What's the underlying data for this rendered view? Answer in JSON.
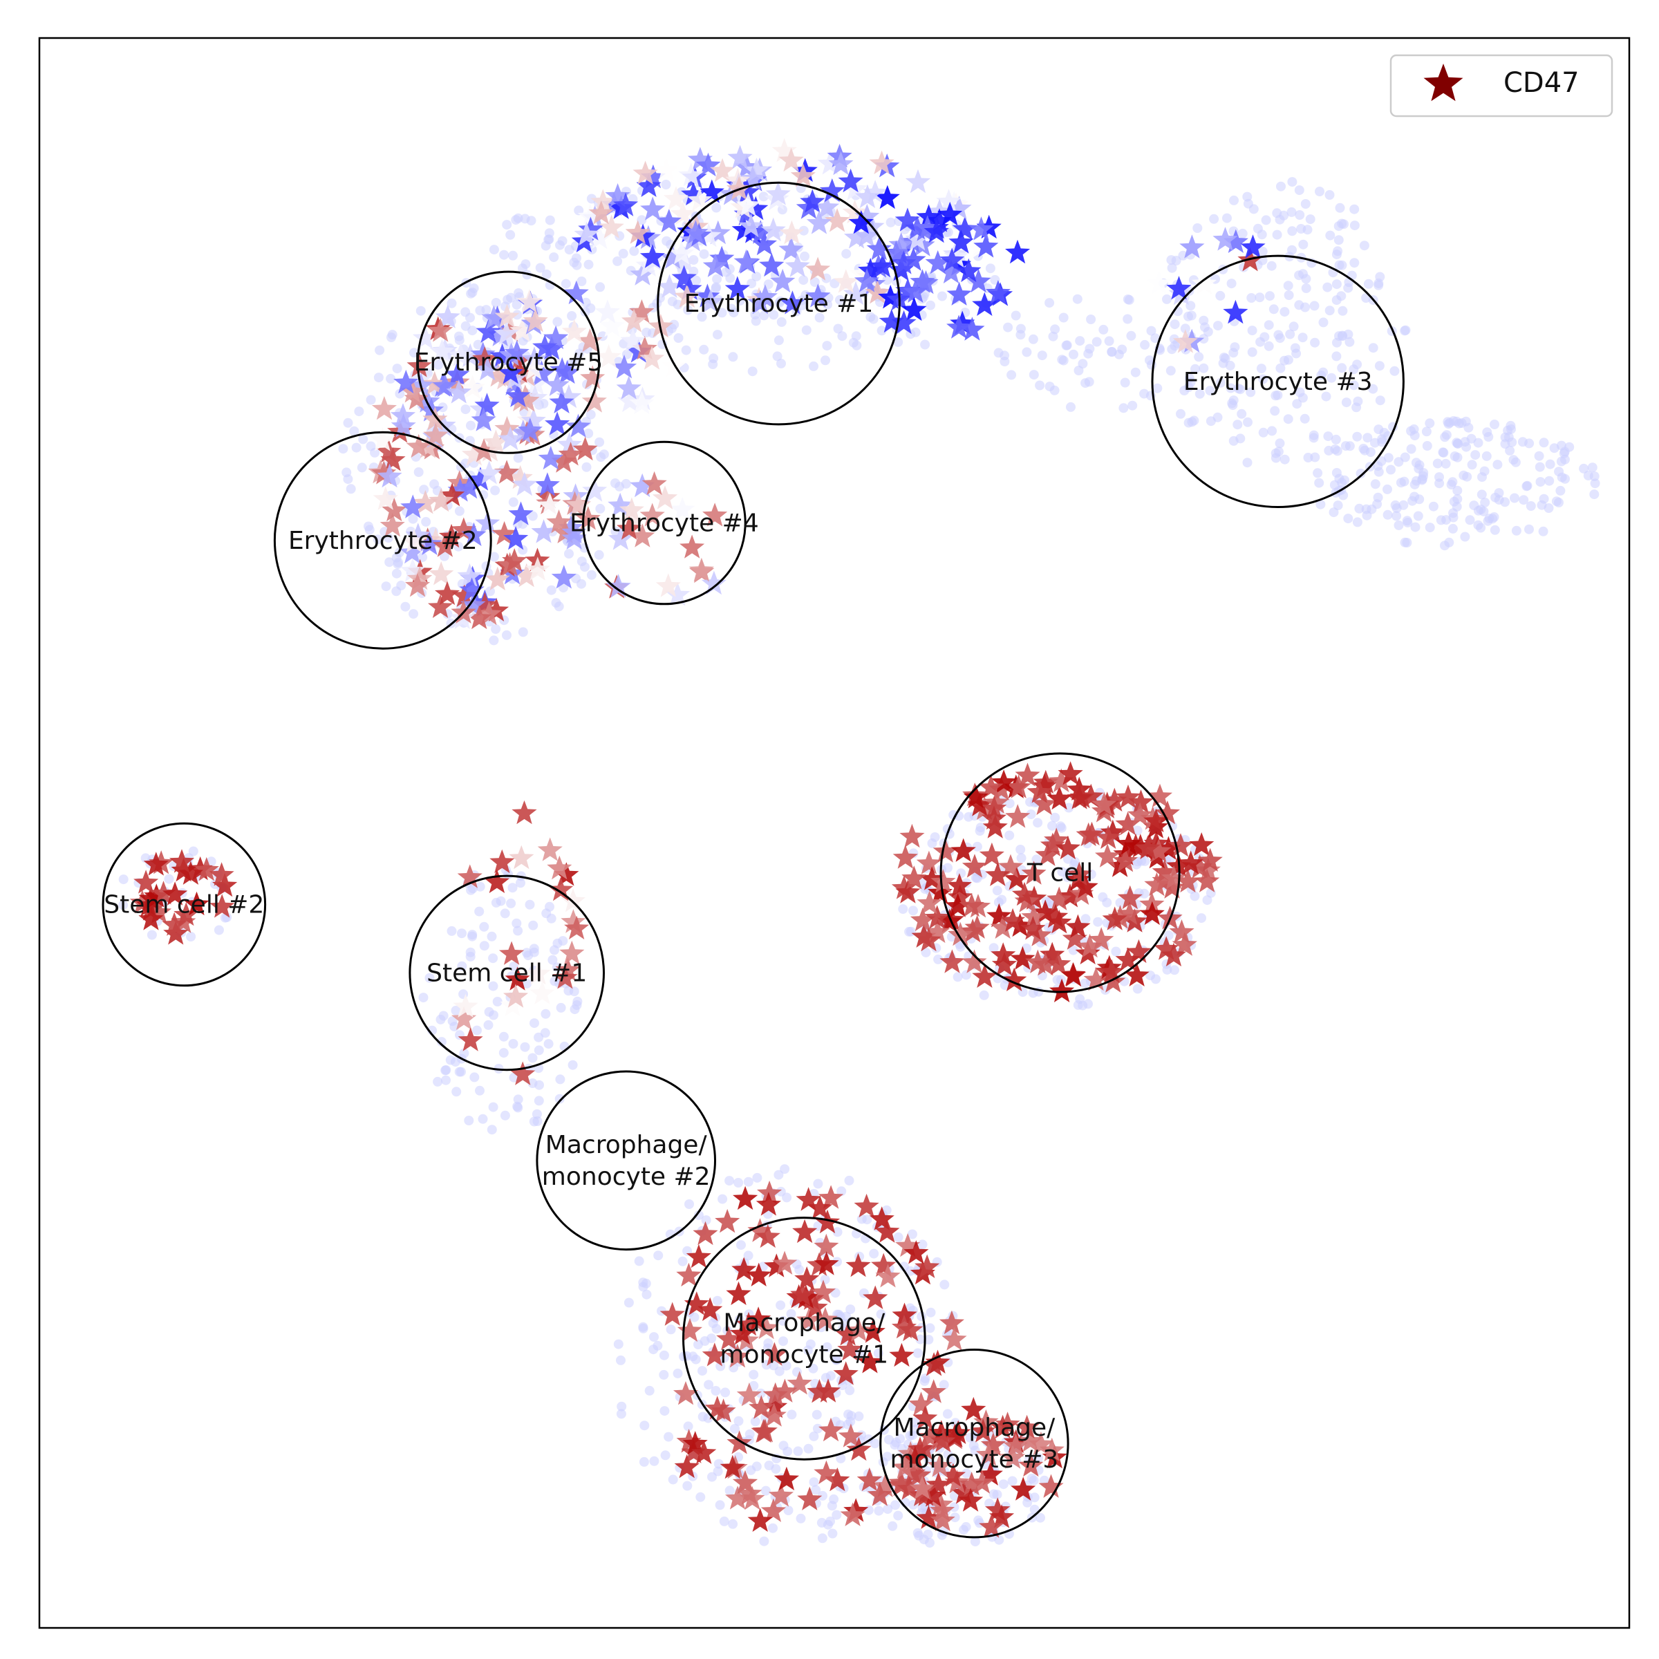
{
  "chart_data": {
    "type": "scatter",
    "title": "",
    "xlabel": "",
    "ylabel": "",
    "xlim": [
      0,
      100
    ],
    "ylim": [
      0,
      100
    ],
    "grid": false,
    "ticks": false,
    "legend": {
      "placement": "top-right",
      "entries": [
        {
          "label": "CD47",
          "marker": "star",
          "color": "#800000"
        }
      ]
    },
    "colormap": {
      "low": "#0000ff",
      "mid": "#ffffff",
      "high": "#b00000",
      "background_points": "#ccd0ff"
    },
    "background_regions": [
      {
        "cx": 44,
        "cy": 85,
        "rx": 18,
        "ry": 6,
        "n": 260
      },
      {
        "cx": 28,
        "cy": 73,
        "rx": 9,
        "ry": 11,
        "n": 200
      },
      {
        "cx": 66,
        "cy": 80,
        "rx": 6,
        "ry": 4,
        "n": 60
      },
      {
        "cx": 78,
        "cy": 82,
        "rx": 8,
        "ry": 9,
        "n": 220
      },
      {
        "cx": 89,
        "cy": 72,
        "rx": 9,
        "ry": 4,
        "n": 200
      },
      {
        "cx": 64,
        "cy": 46,
        "rx": 10,
        "ry": 7,
        "n": 220
      },
      {
        "cx": 29,
        "cy": 39,
        "rx": 5,
        "ry": 9,
        "n": 120
      },
      {
        "cx": 9,
        "cy": 46,
        "rx": 4,
        "ry": 3,
        "n": 30
      },
      {
        "cx": 47,
        "cy": 17,
        "rx": 11,
        "ry": 12,
        "n": 300
      },
      {
        "cx": 58,
        "cy": 9,
        "rx": 6,
        "ry": 4,
        "n": 120
      }
    ],
    "expression_regions": [
      {
        "cx": 47,
        "cy": 88,
        "rx": 13,
        "ry": 5,
        "n": 150,
        "vmin": -1.0,
        "vmax": 0.3
      },
      {
        "cx": 28,
        "cy": 73,
        "rx": 7,
        "ry": 10,
        "n": 150,
        "vmin": -0.7,
        "vmax": 0.8
      },
      {
        "cx": 34,
        "cy": 80,
        "rx": 6,
        "ry": 4,
        "n": 45,
        "vmin": -0.8,
        "vmax": 0.5
      },
      {
        "cx": 38,
        "cy": 68,
        "rx": 6,
        "ry": 4,
        "n": 25,
        "vmin": -0.5,
        "vmax": 0.7
      },
      {
        "cx": 57,
        "cy": 85,
        "rx": 5,
        "ry": 4,
        "n": 35,
        "vmin": -1.0,
        "vmax": -0.4
      },
      {
        "cx": 74,
        "cy": 84,
        "rx": 4,
        "ry": 4,
        "n": 12,
        "vmin": -0.9,
        "vmax": 0.8
      },
      {
        "cx": 64,
        "cy": 47,
        "rx": 10,
        "ry": 7,
        "n": 170,
        "vmin": 0.55,
        "vmax": 1.0
      },
      {
        "cx": 9,
        "cy": 46,
        "rx": 3,
        "ry": 2.5,
        "n": 25,
        "vmin": 0.6,
        "vmax": 1.0
      },
      {
        "cx": 30,
        "cy": 43,
        "rx": 4,
        "ry": 9,
        "n": 25,
        "vmin": 0.0,
        "vmax": 0.95
      },
      {
        "cx": 48,
        "cy": 17,
        "rx": 10,
        "ry": 11,
        "n": 120,
        "vmin": 0.5,
        "vmax": 0.95
      },
      {
        "cx": 59,
        "cy": 10,
        "rx": 5,
        "ry": 4,
        "n": 50,
        "vmin": 0.5,
        "vmax": 0.95
      }
    ],
    "clusters": [
      {
        "name": "Erythrocyte #1",
        "x": 46.5,
        "y": 83.3,
        "r": 7.6
      },
      {
        "name": "Erythrocyte #5",
        "x": 29.5,
        "y": 79.6,
        "r": 5.7
      },
      {
        "name": "Erythrocyte #3",
        "x": 77.9,
        "y": 78.4,
        "r": 7.9
      },
      {
        "name": "Erythrocyte #2",
        "x": 21.6,
        "y": 68.4,
        "r": 6.8
      },
      {
        "name": "Erythrocyte #4",
        "x": 39.3,
        "y": 69.5,
        "r": 5.1
      },
      {
        "name": "T cell",
        "x": 64.2,
        "y": 47.5,
        "r": 7.5
      },
      {
        "name": "Stem cell #2",
        "x": 9.1,
        "y": 45.5,
        "r": 5.1
      },
      {
        "name": "Stem cell #1",
        "x": 29.4,
        "y": 41.2,
        "r": 6.1
      },
      {
        "name": "Macrophage/\nmonocyte #2",
        "x": 36.9,
        "y": 29.4,
        "r": 5.6
      },
      {
        "name": "Macrophage/\nmonocyte #1",
        "x": 48.1,
        "y": 18.2,
        "r": 7.6
      },
      {
        "name": "Macrophage/\nmonocyte #3",
        "x": 58.8,
        "y": 11.6,
        "r": 5.9
      }
    ]
  }
}
